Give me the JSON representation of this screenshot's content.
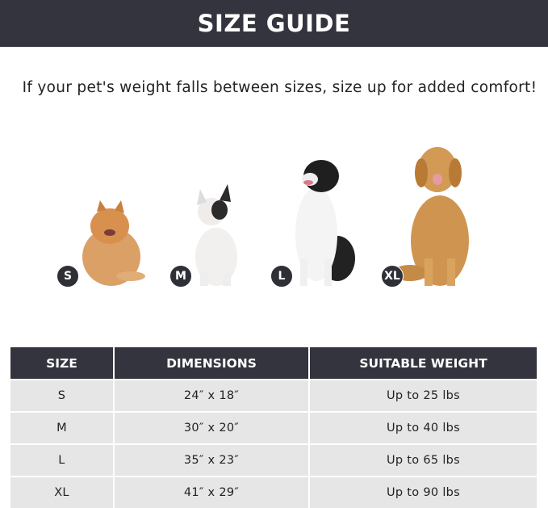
{
  "title": "SIZE GUIDE",
  "subtitle": "If your pet's weight falls between sizes, size up for added comfort!",
  "dogs": [
    {
      "badge": "S",
      "breed-icon": "pomeranian"
    },
    {
      "badge": "M",
      "breed-icon": "french-bulldog"
    },
    {
      "badge": "L",
      "breed-icon": "border-collie"
    },
    {
      "badge": "XL",
      "breed-icon": "golden-retriever"
    }
  ],
  "table": {
    "headers": [
      "SIZE",
      "DIMENSIONS",
      "SUITABLE WEIGHT"
    ],
    "rows": [
      [
        "S",
        "24″ x 18″",
        "Up to 25 lbs"
      ],
      [
        "M",
        "30″ x 20″",
        "Up to 40 lbs"
      ],
      [
        "L",
        "35″ x 23″",
        "Up to 65 lbs"
      ],
      [
        "XL",
        "41″ x 29″",
        "Up to 90 lbs"
      ]
    ]
  },
  "colors": {
    "header_bg": "#34343e",
    "row_bg": "#e6e6e6"
  }
}
